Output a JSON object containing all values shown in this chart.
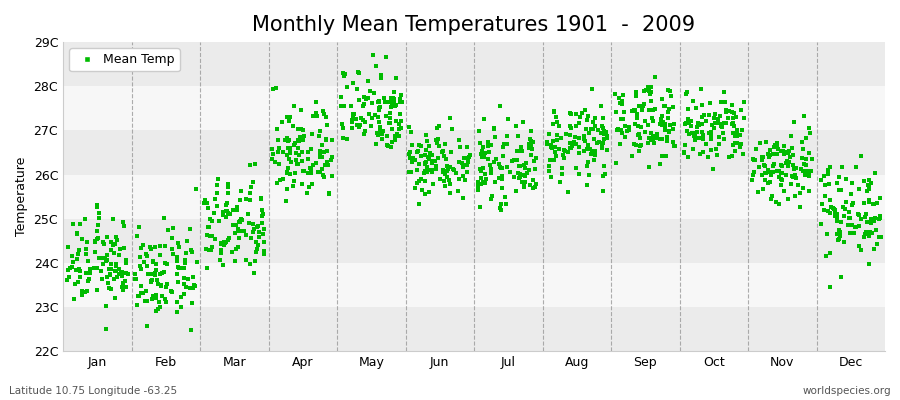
{
  "title": "Monthly Mean Temperatures 1901  -  2009",
  "ylabel": "Temperature",
  "lat_label": "Latitude 10.75 Longitude -63.25",
  "source_label": "worldspecies.org",
  "legend_label": "Mean Temp",
  "marker_color": "#00BB00",
  "marker": "s",
  "marker_size": 2.5,
  "ylim": [
    22,
    29
  ],
  "ytick_labels": [
    "22C",
    "23C",
    "24C",
    "25C",
    "26C",
    "27C",
    "28C",
    "29C"
  ],
  "ytick_values": [
    22,
    23,
    24,
    25,
    26,
    27,
    28,
    29
  ],
  "months": [
    "Jan",
    "Feb",
    "Mar",
    "Apr",
    "May",
    "Jun",
    "Jul",
    "Aug",
    "Sep",
    "Oct",
    "Nov",
    "Dec"
  ],
  "num_years": 109,
  "background_color": "#ffffff",
  "band_colors": [
    "#ebebeb",
    "#f7f7f7"
  ],
  "title_fontsize": 15,
  "axis_fontsize": 9,
  "tick_fontsize": 9,
  "monthly_means": [
    24.0,
    23.7,
    24.8,
    26.5,
    27.5,
    26.3,
    26.2,
    26.7,
    27.2,
    27.0,
    26.2,
    25.2
  ],
  "monthly_stds": [
    0.5,
    0.5,
    0.55,
    0.55,
    0.5,
    0.4,
    0.4,
    0.42,
    0.42,
    0.42,
    0.45,
    0.55
  ]
}
